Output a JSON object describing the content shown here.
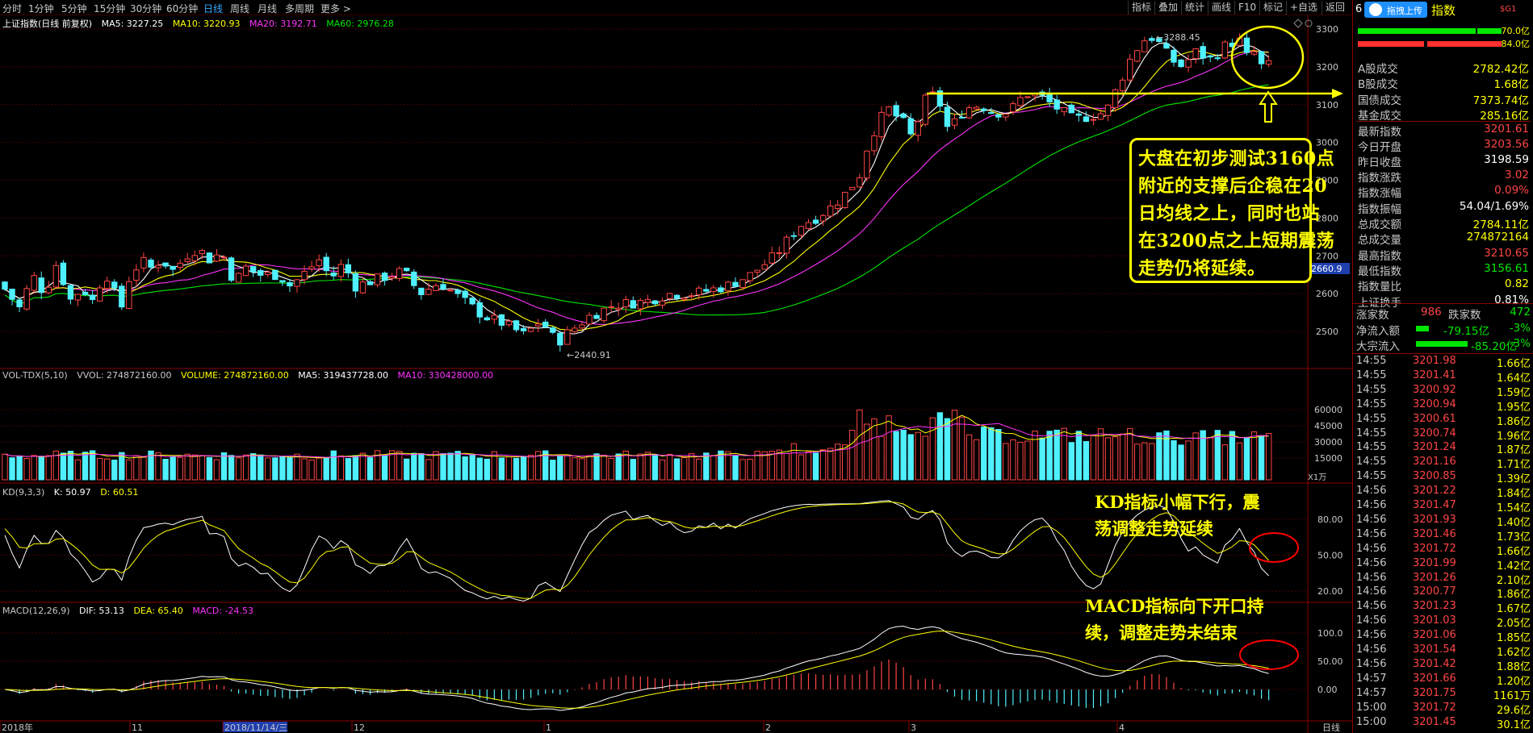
{
  "toolbar": {
    "timeframes": [
      "分时",
      "1分钟",
      "5分钟",
      "15分钟",
      "30分钟",
      "60分钟",
      "日线",
      "周线",
      "月线",
      "多周期",
      "更多 >"
    ],
    "active_timeframe": "日线",
    "buttons": [
      "指标",
      "叠加",
      "统计",
      "画线",
      "F10",
      "标记",
      "+自选",
      "返回"
    ]
  },
  "main_pane": {
    "title": "上证指数(日线 前复权)",
    "ma_labels": [
      {
        "text": "MA5: 3227.25",
        "color": "#ffffff"
      },
      {
        "text": "MA10: 3220.93",
        "color": "#ffff00"
      },
      {
        "text": "MA20: 3192.71",
        "color": "#ff33ff"
      },
      {
        "text": "MA60: 2976.28",
        "color": "#00e600"
      }
    ],
    "high_marker": "3288.45",
    "low_marker": "2440.91",
    "current_price_tag": "2660.9",
    "y_ticks": [
      "3300",
      "3200",
      "3100",
      "3000",
      "2900",
      "2800",
      "2700",
      "2600",
      "2500"
    ]
  },
  "volume_pane": {
    "labels": [
      {
        "text": "VOL-TDX(5,10)",
        "color": "#c8c8c8"
      },
      {
        "text": "VVOL: 274872160.00",
        "color": "#c8c8c8"
      },
      {
        "text": "VOLUME: 274872160.00",
        "color": "#ffff00"
      },
      {
        "text": "MA5: 319437728.00",
        "color": "#ffffff"
      },
      {
        "text": "MA10: 330428000.00",
        "color": "#ff33ff"
      }
    ],
    "y_ticks": [
      "60000",
      "45000",
      "30000",
      "15000"
    ],
    "unit": "X1万"
  },
  "kd_pane": {
    "labels": [
      {
        "text": "KD(9,3,3)",
        "color": "#c8c8c8"
      },
      {
        "text": "K: 50.97",
        "color": "#ffffff"
      },
      {
        "text": "D: 60.51",
        "color": "#ffff00"
      }
    ],
    "y_ticks": [
      "80.00",
      "50.00",
      "20.00"
    ]
  },
  "macd_pane": {
    "labels": [
      {
        "text": "MACD(12,26,9)",
        "color": "#c8c8c8"
      },
      {
        "text": "DIF: 53.13",
        "color": "#ffffff"
      },
      {
        "text": "DEA: 65.40",
        "color": "#ffff00"
      },
      {
        "text": "MACD: -24.53",
        "color": "#ff33ff"
      }
    ],
    "y_ticks": [
      "100.0",
      "50.00",
      "0.00"
    ]
  },
  "x_axis": {
    "labels": [
      "2018年",
      "11",
      "2018/11/14/三",
      "12",
      "1",
      "2",
      "3",
      "4"
    ],
    "period": "日线"
  },
  "annotations": {
    "main_callout": [
      "大盘在初步测试3160点",
      "附近的支撑后企稳在20",
      "日均线之上，同时也站",
      "在3200点之上短期震荡",
      "走势仍将延续。"
    ],
    "kd_note": [
      "KD指标小幅下行，震",
      "荡调整走势延续"
    ],
    "macd_note": [
      "MACD指标向下开口持",
      "续，调整走势未结束"
    ]
  },
  "right_panel": {
    "header_code": "6",
    "upload_button": "拖拽上传",
    "header_title": "指数",
    "header_tag": "$G1",
    "bars": [
      {
        "value": "70.0亿",
        "kind": "green"
      },
      {
        "value": "84.0亿",
        "kind": "red"
      }
    ],
    "stats": [
      {
        "label": "A股成交",
        "value": "2782.42亿",
        "color": "#ffff00"
      },
      {
        "label": "B股成交",
        "value": "1.68亿",
        "color": "#ffff00"
      },
      {
        "label": "国债成交",
        "value": "7373.74亿",
        "color": "#ffff00"
      },
      {
        "label": "基金成交",
        "value": "285.16亿",
        "color": "#ffff00"
      },
      {
        "label": "最新指数",
        "value": "3201.61",
        "color": "#ff4545"
      },
      {
        "label": "今日开盘",
        "value": "3203.56",
        "color": "#ff4545"
      },
      {
        "label": "昨日收盘",
        "value": "3198.59",
        "color": "#ffffff"
      },
      {
        "label": "指数涨跌",
        "value": "3.02",
        "color": "#ff4545"
      },
      {
        "label": "指数涨幅",
        "value": "0.09%",
        "color": "#ff4545"
      },
      {
        "label": "指数振幅",
        "value": "54.04/1.69%",
        "color": "#ffffff"
      },
      {
        "label": "总成交额",
        "value": "2784.11亿",
        "color": "#ffff00"
      },
      {
        "label": "总成交量",
        "value": "274872164",
        "color": "#ffff00"
      },
      {
        "label": "最高指数",
        "value": "3210.65",
        "color": "#ff4545"
      },
      {
        "label": "最低指数",
        "value": "3156.61",
        "color": "#00e600"
      },
      {
        "label": "指数量比",
        "value": "0.82",
        "color": "#ffff00"
      },
      {
        "label": "上证换手",
        "value": "0.81%",
        "color": "#ffffff"
      }
    ],
    "breadth": {
      "up_label": "涨家数",
      "up_value": "986",
      "down_label": "跌家数",
      "down_value": "472"
    },
    "flows": [
      {
        "label": "净流入额",
        "value": "-79.15亿",
        "pct": "-3%"
      },
      {
        "label": "大宗流入",
        "value": "-85.20亿",
        "pct": "-3%"
      }
    ],
    "ticks": [
      {
        "time": "14:55",
        "price": "3201.98",
        "vol": "1.66亿"
      },
      {
        "time": "14:55",
        "price": "3201.41",
        "vol": "1.64亿"
      },
      {
        "time": "14:55",
        "price": "3200.92",
        "vol": "1.59亿"
      },
      {
        "time": "14:55",
        "price": "3200.94",
        "vol": "1.95亿"
      },
      {
        "time": "14:55",
        "price": "3200.61",
        "vol": "1.86亿"
      },
      {
        "time": "14:55",
        "price": "3200.74",
        "vol": "1.96亿"
      },
      {
        "time": "14:55",
        "price": "3201.24",
        "vol": "1.87亿"
      },
      {
        "time": "14:55",
        "price": "3201.16",
        "vol": "1.71亿"
      },
      {
        "time": "14:55",
        "price": "3200.85",
        "vol": "1.39亿"
      },
      {
        "time": "14:56",
        "price": "3201.22",
        "vol": "1.84亿"
      },
      {
        "time": "14:56",
        "price": "3201.47",
        "vol": "1.54亿"
      },
      {
        "time": "14:56",
        "price": "3201.93",
        "vol": "1.40亿"
      },
      {
        "time": "14:56",
        "price": "3201.46",
        "vol": "1.73亿"
      },
      {
        "time": "14:56",
        "price": "3201.72",
        "vol": "1.66亿"
      },
      {
        "time": "14:56",
        "price": "3201.99",
        "vol": "1.42亿"
      },
      {
        "time": "14:56",
        "price": "3201.26",
        "vol": "2.10亿"
      },
      {
        "time": "14:56",
        "price": "3200.77",
        "vol": "1.86亿"
      },
      {
        "time": "14:56",
        "price": "3201.23",
        "vol": "1.67亿"
      },
      {
        "time": "14:56",
        "price": "3201.03",
        "vol": "2.05亿"
      },
      {
        "time": "14:56",
        "price": "3201.06",
        "vol": "1.85亿"
      },
      {
        "time": "14:56",
        "price": "3201.54",
        "vol": "1.62亿"
      },
      {
        "time": "14:56",
        "price": "3201.42",
        "vol": "1.88亿"
      },
      {
        "time": "14:57",
        "price": "3201.66",
        "vol": "1.20亿"
      },
      {
        "time": "14:57",
        "price": "3201.75",
        "vol": "1161万"
      },
      {
        "time": "15:00",
        "price": "3201.72",
        "vol": "29.6亿"
      },
      {
        "time": "15:00",
        "price": "3201.45",
        "vol": "30.1亿"
      }
    ]
  },
  "colors": {
    "up": "#ff4545",
    "down": "#4ff0ff",
    "ma5": "#ffffff",
    "ma10": "#ffff00",
    "ma20": "#ff33ff",
    "ma60": "#00e600",
    "grid": "#7a0000",
    "annotation": "#ffff00",
    "marker": "#ff0000"
  }
}
